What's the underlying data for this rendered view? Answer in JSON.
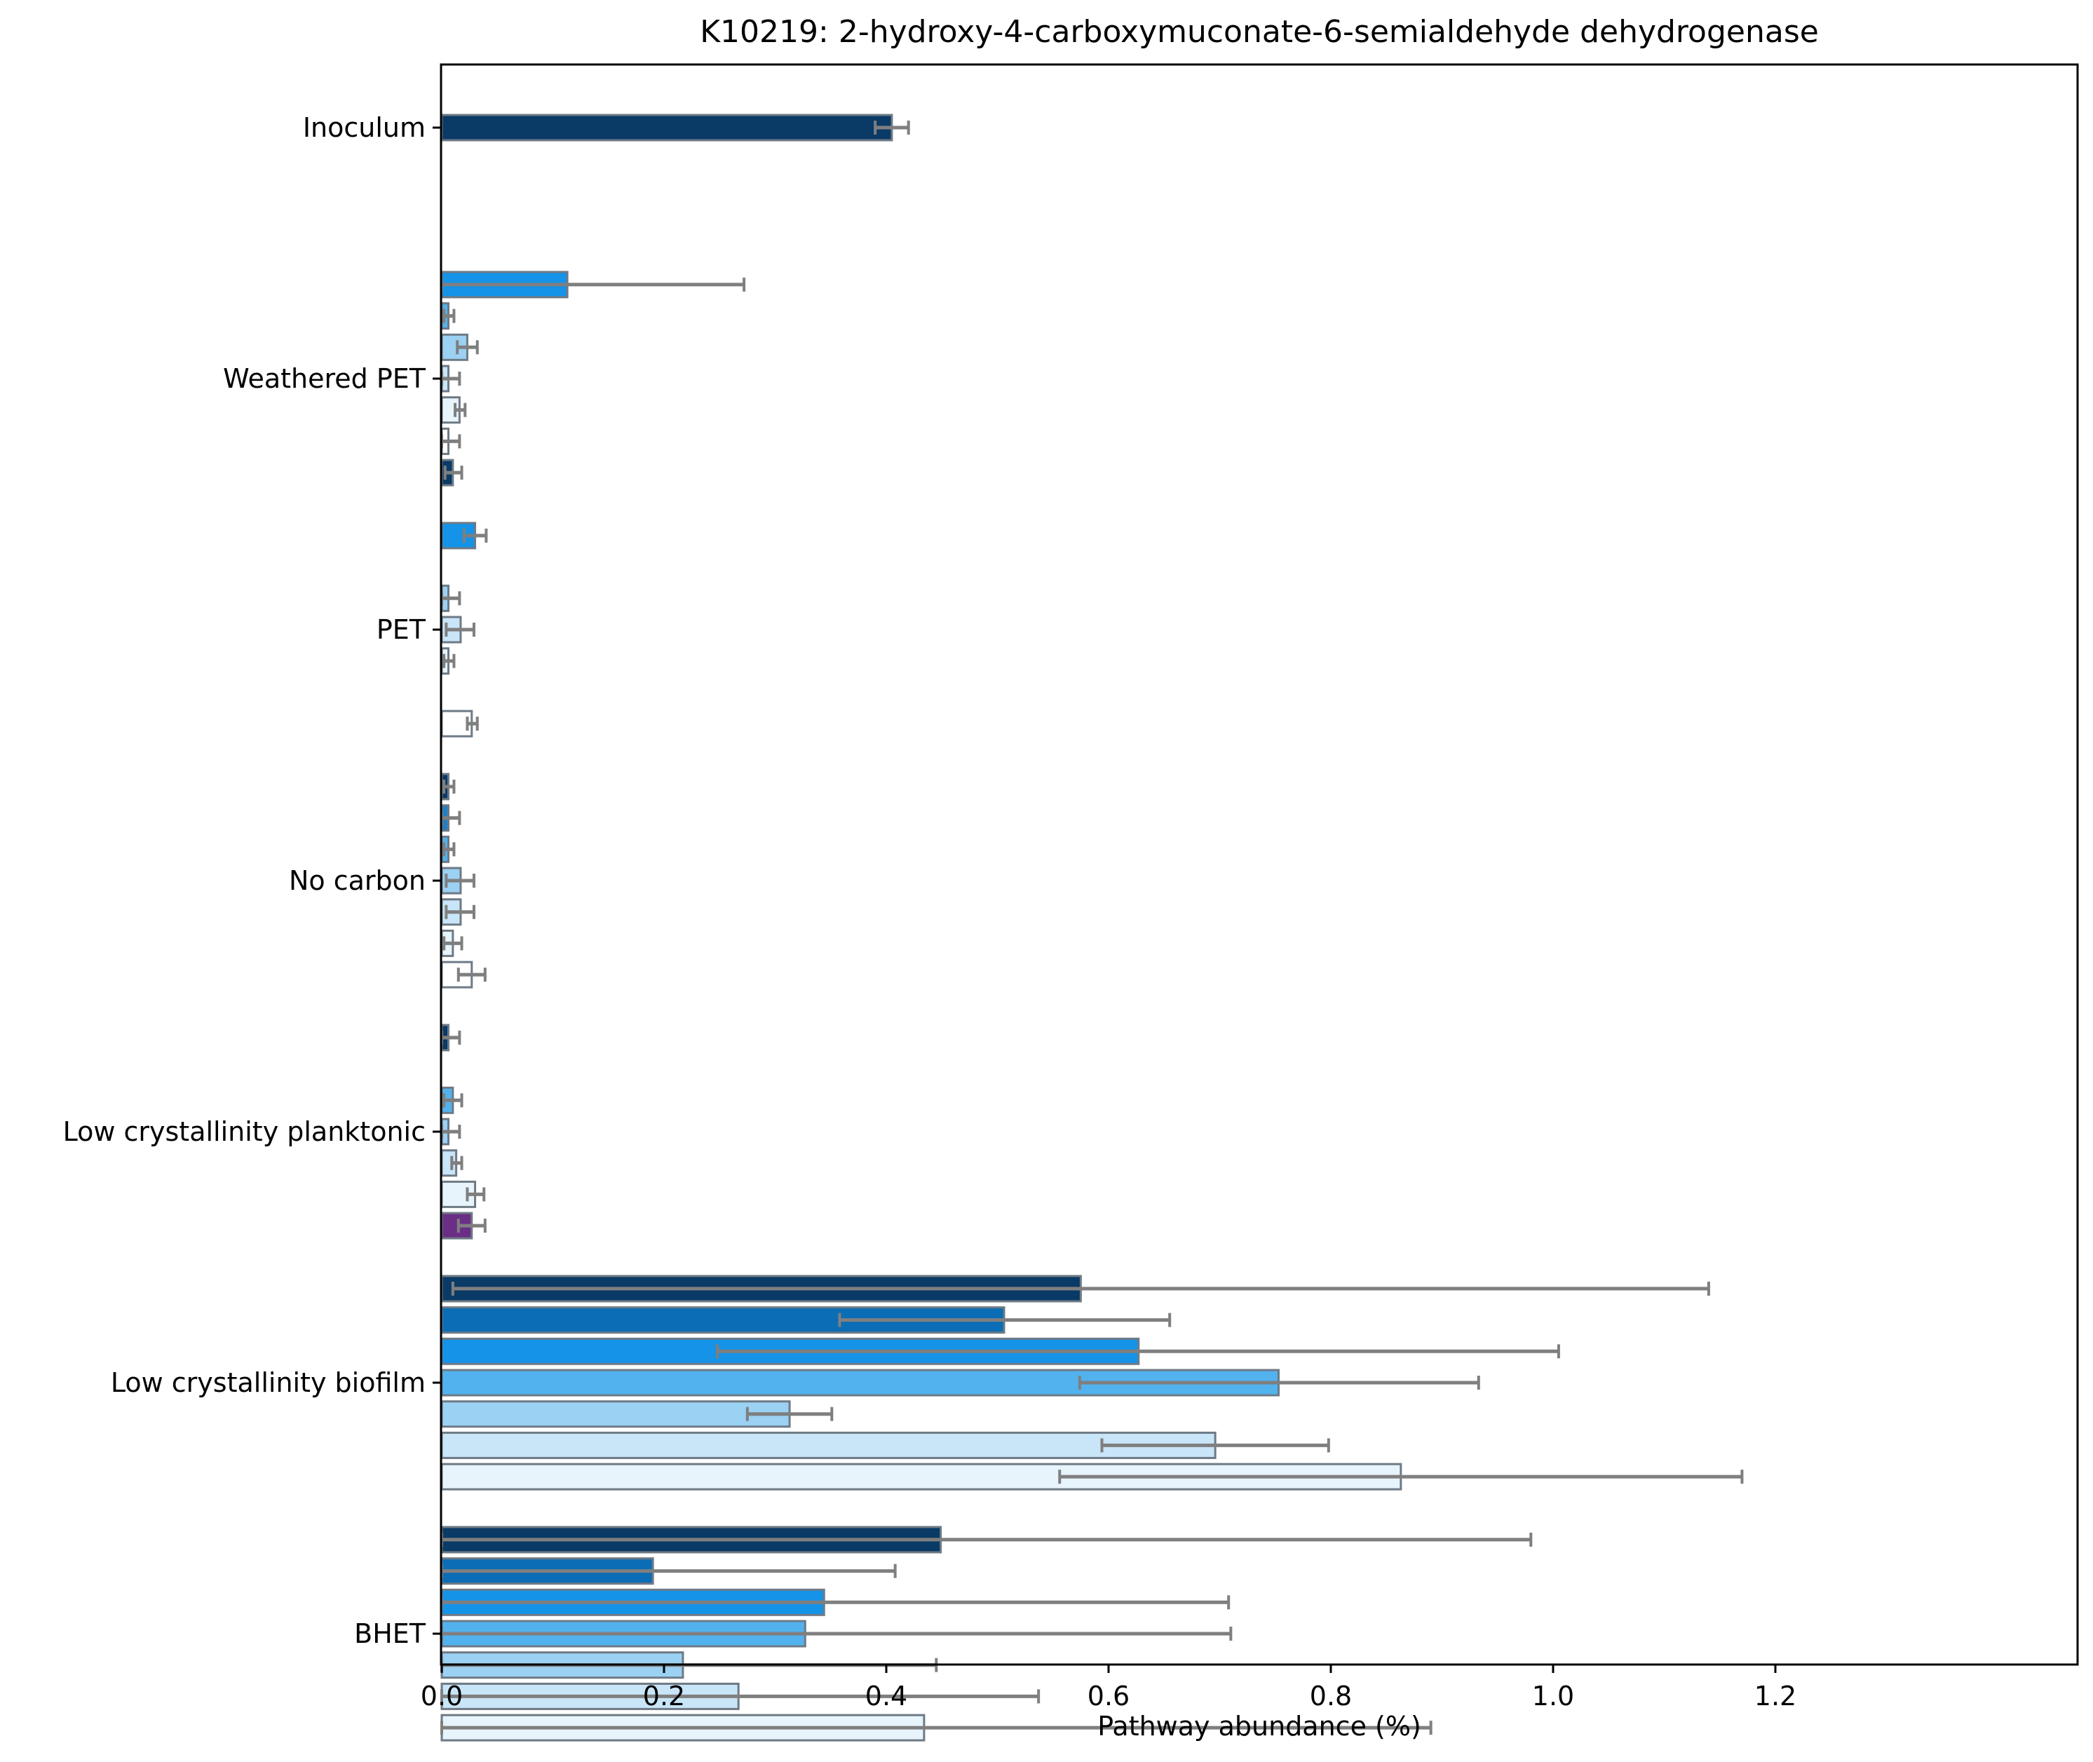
{
  "chart_data": {
    "type": "bar",
    "orientation": "horizontal",
    "title": "K10219: 2-hydroxy-4-carboxymuconate-6-semialdehyde dehydrogenase",
    "xlabel": "Pathway abundance (%)",
    "ylabel": "",
    "xlim": [
      0,
      1.23
    ],
    "xticks": [
      "0.0",
      "0.2",
      "0.4",
      "0.6",
      "0.8",
      "1.0",
      "1.2"
    ],
    "grid": false,
    "categories": [
      "Inoculum",
      "Weathered PET",
      "PET",
      "No carbon",
      "Low crystallinity planktonic",
      "Low crystallinity biofilm",
      "BHET"
    ],
    "groups": [
      {
        "name": "Inoculum",
        "bars": [
          {
            "value": 0.405,
            "err_lo": 0.39,
            "err_hi": 0.42,
            "color": "#0a3a66"
          }
        ]
      },
      {
        "name": "Weathered PET",
        "bars": [
          {
            "value": 0.113,
            "err_lo": 0.0,
            "err_hi": 0.272,
            "color": "#1493e8"
          },
          {
            "value": 0.006,
            "err_lo": 0.002,
            "err_hi": 0.011,
            "color": "#52b2ee"
          },
          {
            "value": 0.023,
            "err_lo": 0.014,
            "err_hi": 0.032,
            "color": "#9bd1f3"
          },
          {
            "value": 0.006,
            "err_lo": 0.0,
            "err_hi": 0.016,
            "color": "#c9e5f8"
          },
          {
            "value": 0.016,
            "err_lo": 0.012,
            "err_hi": 0.021,
            "color": "#e8f4fc"
          },
          {
            "value": 0.006,
            "err_lo": 0.0,
            "err_hi": 0.016,
            "color": "#ffffff"
          },
          {
            "value": 0.01,
            "err_lo": 0.003,
            "err_hi": 0.018,
            "color": "#0a3a66"
          }
        ]
      },
      {
        "name": "PET",
        "bars": [
          {
            "value": 0.03,
            "err_lo": 0.02,
            "err_hi": 0.04,
            "color": "#1493e8"
          },
          {
            "value": null,
            "color": "#52b2ee"
          },
          {
            "value": 0.006,
            "err_lo": 0.0,
            "err_hi": 0.016,
            "color": "#9bd1f3"
          },
          {
            "value": 0.017,
            "err_lo": 0.004,
            "err_hi": 0.029,
            "color": "#c9e5f8"
          },
          {
            "value": 0.006,
            "err_lo": 0.002,
            "err_hi": 0.011,
            "color": "#e8f4fc"
          },
          {
            "value": null,
            "color": "#ffffff"
          },
          {
            "value": 0.027,
            "err_lo": 0.023,
            "err_hi": 0.032,
            "color": "#ffffff"
          }
        ]
      },
      {
        "name": "No carbon",
        "bars": [
          {
            "value": 0.006,
            "err_lo": 0.002,
            "err_hi": 0.011,
            "color": "#0a3a66"
          },
          {
            "value": 0.006,
            "err_lo": 0.0,
            "err_hi": 0.016,
            "color": "#1f7fc8"
          },
          {
            "value": 0.006,
            "err_lo": 0.002,
            "err_hi": 0.011,
            "color": "#52b2ee"
          },
          {
            "value": 0.017,
            "err_lo": 0.004,
            "err_hi": 0.029,
            "color": "#9bd1f3"
          },
          {
            "value": 0.017,
            "err_lo": 0.004,
            "err_hi": 0.029,
            "color": "#c9e5f8"
          },
          {
            "value": 0.01,
            "err_lo": 0.002,
            "err_hi": 0.018,
            "color": "#e8f4fc"
          },
          {
            "value": 0.027,
            "err_lo": 0.015,
            "err_hi": 0.039,
            "color": "#ffffff"
          }
        ]
      },
      {
        "name": "Low crystallinity planktonic",
        "bars": [
          {
            "value": 0.006,
            "err_lo": 0.0,
            "err_hi": 0.016,
            "color": "#0a3a66"
          },
          {
            "value": null,
            "color": "#1f7fc8"
          },
          {
            "value": 0.01,
            "err_lo": 0.002,
            "err_hi": 0.018,
            "color": "#52b2ee"
          },
          {
            "value": 0.006,
            "err_lo": 0.0,
            "err_hi": 0.016,
            "color": "#9bd1f3"
          },
          {
            "value": 0.013,
            "err_lo": 0.009,
            "err_hi": 0.018,
            "color": "#c9e5f8"
          },
          {
            "value": 0.03,
            "err_lo": 0.023,
            "err_hi": 0.038,
            "color": "#e8f4fc"
          },
          {
            "value": 0.027,
            "err_lo": 0.015,
            "err_hi": 0.039,
            "color": "#6b2e86"
          }
        ]
      },
      {
        "name": "Low crystallinity biofilm",
        "bars": [
          {
            "value": 0.575,
            "err_lo": 0.01,
            "err_hi": 1.14,
            "color": "#0a3a66"
          },
          {
            "value": 0.506,
            "err_lo": 0.358,
            "err_hi": 0.655,
            "color": "#0b6db5"
          },
          {
            "value": 0.627,
            "err_lo": 0.248,
            "err_hi": 1.005,
            "color": "#1493e8"
          },
          {
            "value": 0.753,
            "err_lo": 0.574,
            "err_hi": 0.933,
            "color": "#52b2ee"
          },
          {
            "value": 0.313,
            "err_lo": 0.275,
            "err_hi": 0.351,
            "color": "#9bd1f3"
          },
          {
            "value": 0.696,
            "err_lo": 0.594,
            "err_hi": 0.798,
            "color": "#c9e5f8"
          },
          {
            "value": 0.863,
            "err_lo": 0.556,
            "err_hi": 1.17,
            "color": "#e8f4fc"
          }
        ]
      },
      {
        "name": "BHET",
        "bars": [
          {
            "value": 0.449,
            "err_lo": 0.0,
            "err_hi": 0.98,
            "color": "#0a3a66"
          },
          {
            "value": 0.19,
            "err_lo": 0.0,
            "err_hi": 0.408,
            "color": "#0b6db5"
          },
          {
            "value": 0.344,
            "err_lo": 0.0,
            "err_hi": 0.708,
            "color": "#1493e8"
          },
          {
            "value": 0.327,
            "err_lo": 0.0,
            "err_hi": 0.71,
            "color": "#52b2ee"
          },
          {
            "value": 0.217,
            "err_lo": 0.0,
            "err_hi": 0.445,
            "color": "#9bd1f3"
          },
          {
            "value": 0.267,
            "err_lo": 0.0,
            "err_hi": 0.537,
            "color": "#c9e5f8"
          },
          {
            "value": 0.434,
            "err_lo": 0.0,
            "err_hi": 0.89,
            "color": "#e8f4fc"
          }
        ]
      }
    ]
  }
}
